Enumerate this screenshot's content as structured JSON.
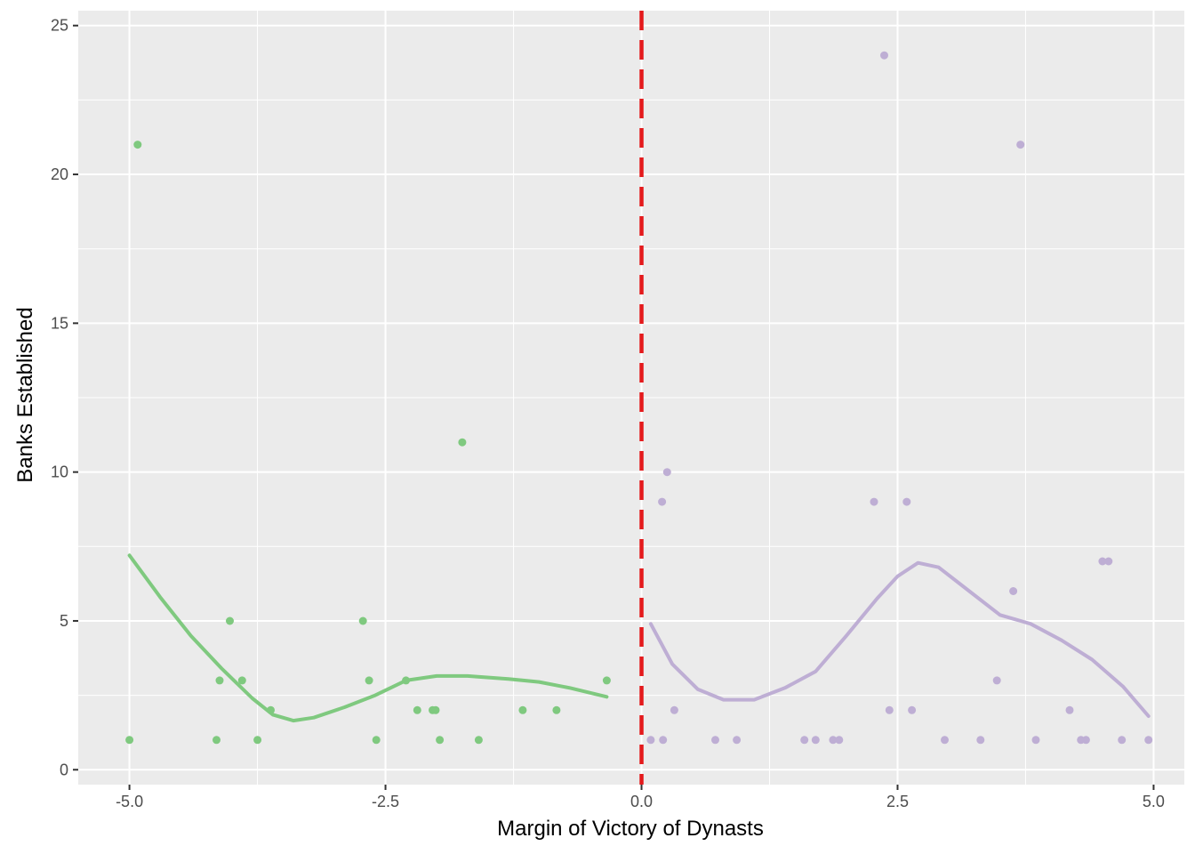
{
  "chart_data": {
    "type": "scatter",
    "xlabel": "Margin of Victory of Dynasts",
    "ylabel": "Banks Established",
    "xlim": [
      -5.5,
      5.3
    ],
    "ylim": [
      -0.5,
      25.5
    ],
    "x_ticks": [
      -5.0,
      -2.5,
      0.0,
      2.5,
      5.0
    ],
    "x_tick_labels": [
      "-5.0",
      "-2.5",
      "0.0",
      "2.5",
      "5.0"
    ],
    "y_ticks": [
      0,
      5,
      10,
      15,
      20,
      25
    ],
    "y_tick_labels": [
      "0",
      "5",
      "10",
      "15",
      "20",
      "25"
    ],
    "grid": true,
    "legend": "none",
    "cutoff": {
      "x": 0,
      "style": "dashed",
      "color": "#e41a1c"
    },
    "series": [
      {
        "side": "left",
        "color": "#7fc97f",
        "points": [
          [
            -5.0,
            1
          ],
          [
            -4.92,
            21
          ],
          [
            -4.15,
            1
          ],
          [
            -4.12,
            3
          ],
          [
            -4.02,
            5
          ],
          [
            -3.9,
            3
          ],
          [
            -3.75,
            1
          ],
          [
            -3.62,
            2
          ],
          [
            -2.72,
            5
          ],
          [
            -2.66,
            3
          ],
          [
            -2.59,
            1
          ],
          [
            -2.3,
            3
          ],
          [
            -2.19,
            2
          ],
          [
            -2.04,
            2
          ],
          [
            -2.01,
            2
          ],
          [
            -1.97,
            1
          ],
          [
            -1.75,
            11
          ],
          [
            -1.59,
            1
          ],
          [
            -1.16,
            2
          ],
          [
            -0.83,
            2
          ],
          [
            -0.34,
            3
          ]
        ],
        "smooth": [
          [
            -5.0,
            7.2
          ],
          [
            -4.7,
            5.8
          ],
          [
            -4.4,
            4.5
          ],
          [
            -4.1,
            3.4
          ],
          [
            -3.8,
            2.4
          ],
          [
            -3.6,
            1.85
          ],
          [
            -3.4,
            1.65
          ],
          [
            -3.2,
            1.75
          ],
          [
            -2.9,
            2.1
          ],
          [
            -2.6,
            2.5
          ],
          [
            -2.3,
            3.0
          ],
          [
            -2.0,
            3.15
          ],
          [
            -1.7,
            3.15
          ],
          [
            -1.3,
            3.05
          ],
          [
            -1.0,
            2.95
          ],
          [
            -0.7,
            2.75
          ],
          [
            -0.34,
            2.45
          ]
        ]
      },
      {
        "side": "right",
        "color": "#beaed4",
        "points": [
          [
            0.09,
            1
          ],
          [
            0.2,
            9
          ],
          [
            0.21,
            1
          ],
          [
            0.25,
            10
          ],
          [
            0.32,
            2
          ],
          [
            0.72,
            1
          ],
          [
            0.93,
            1
          ],
          [
            1.59,
            1
          ],
          [
            1.7,
            1
          ],
          [
            1.87,
            1
          ],
          [
            1.93,
            1
          ],
          [
            2.27,
            9
          ],
          [
            2.37,
            24
          ],
          [
            2.42,
            2
          ],
          [
            2.59,
            9
          ],
          [
            2.64,
            2
          ],
          [
            2.96,
            1
          ],
          [
            3.31,
            1
          ],
          [
            3.47,
            3
          ],
          [
            3.63,
            6
          ],
          [
            3.7,
            21
          ],
          [
            3.85,
            1
          ],
          [
            4.18,
            2
          ],
          [
            4.29,
            1
          ],
          [
            4.34,
            1
          ],
          [
            4.5,
            7
          ],
          [
            4.56,
            7
          ],
          [
            4.69,
            1
          ],
          [
            4.95,
            1
          ]
        ],
        "smooth": [
          [
            0.09,
            4.9
          ],
          [
            0.3,
            3.55
          ],
          [
            0.55,
            2.7
          ],
          [
            0.8,
            2.35
          ],
          [
            1.1,
            2.35
          ],
          [
            1.4,
            2.75
          ],
          [
            1.7,
            3.3
          ],
          [
            2.0,
            4.5
          ],
          [
            2.3,
            5.75
          ],
          [
            2.5,
            6.5
          ],
          [
            2.7,
            6.95
          ],
          [
            2.9,
            6.8
          ],
          [
            3.2,
            6.0
          ],
          [
            3.5,
            5.2
          ],
          [
            3.8,
            4.9
          ],
          [
            4.1,
            4.35
          ],
          [
            4.4,
            3.7
          ],
          [
            4.7,
            2.8
          ],
          [
            4.95,
            1.8
          ]
        ]
      }
    ]
  }
}
